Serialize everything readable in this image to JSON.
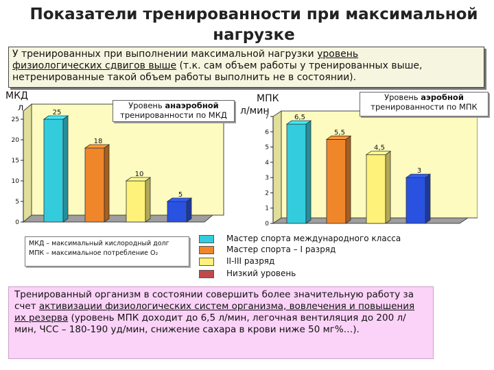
{
  "slide": {
    "title": "Показатели тренированности при максимальной нагрузке",
    "intro": {
      "p1": "У тренированных при выполнении максимальной нагрузки ",
      "p1u": "уровень",
      "p2u": "физиологических сдвигов выше",
      "p3": " (т.к. сам объем работы у тренированных выше, нетренированные такой объем работы выполнить не в состоянии)."
    },
    "abbreviations": [
      "МКД – максимальный кислородный долг",
      "МПК – максимальное потребление О₂"
    ],
    "legend": [
      {
        "label": "Мастер спорта международного класса",
        "color": "#33ccdd"
      },
      {
        "label": "Мастер спорта – I разряд",
        "color": "#f0862a"
      },
      {
        "label": "II-III разряд",
        "color": "#fff27a"
      },
      {
        "label": "Низкий уровень",
        "color": "#c04a4a"
      }
    ],
    "conclusion": {
      "c1": "Тренированный организм в состоянии совершить более значительную работу за счет ",
      "c2u": "активизации физиологических систем организма, вовлечения и повышения их резерва",
      "c3": " (уровень МПК доходит до 6,5 л/мин, легочная вентиляция до 200 л/мин, ЧСС – 180-190 уд/мин, снижение сахара в крови ниже 50 мг%…)."
    }
  },
  "chart_data": [
    {
      "type": "bar",
      "axis_title_1": "МКД",
      "axis_title_2": "л",
      "callout_1": "Уровень ",
      "callout_bold": "анаэробной",
      "callout_2": "тренированности по МКД",
      "yticks": [
        "0",
        "5",
        "10",
        "15",
        "20",
        "25"
      ],
      "ylim": [
        0,
        27
      ],
      "values": [
        25,
        18,
        10,
        5
      ],
      "data_labels": [
        "25",
        "18",
        "10",
        "5"
      ],
      "colors": [
        "#33ccdd",
        "#f0862a",
        "#fff27a",
        "#2a52e0"
      ],
      "grid": false,
      "background": "#fdfbbf"
    },
    {
      "type": "bar",
      "axis_title_1": "МПК",
      "axis_title_2": "л/мин",
      "callout_1": "Уровень ",
      "callout_bold": "аэробной",
      "callout_2": "тренированности по МПК",
      "yticks": [
        "0",
        "1",
        "2",
        "3",
        "4",
        "5",
        "6",
        "7"
      ],
      "ylim": [
        0,
        7
      ],
      "values": [
        6.5,
        5.5,
        4.5,
        3
      ],
      "data_labels": [
        "6,5",
        "5,5",
        "4,5",
        "3"
      ],
      "colors": [
        "#33ccdd",
        "#f0862a",
        "#fff27a",
        "#2a52e0"
      ],
      "grid": false,
      "background": "#fdfbbf"
    }
  ]
}
